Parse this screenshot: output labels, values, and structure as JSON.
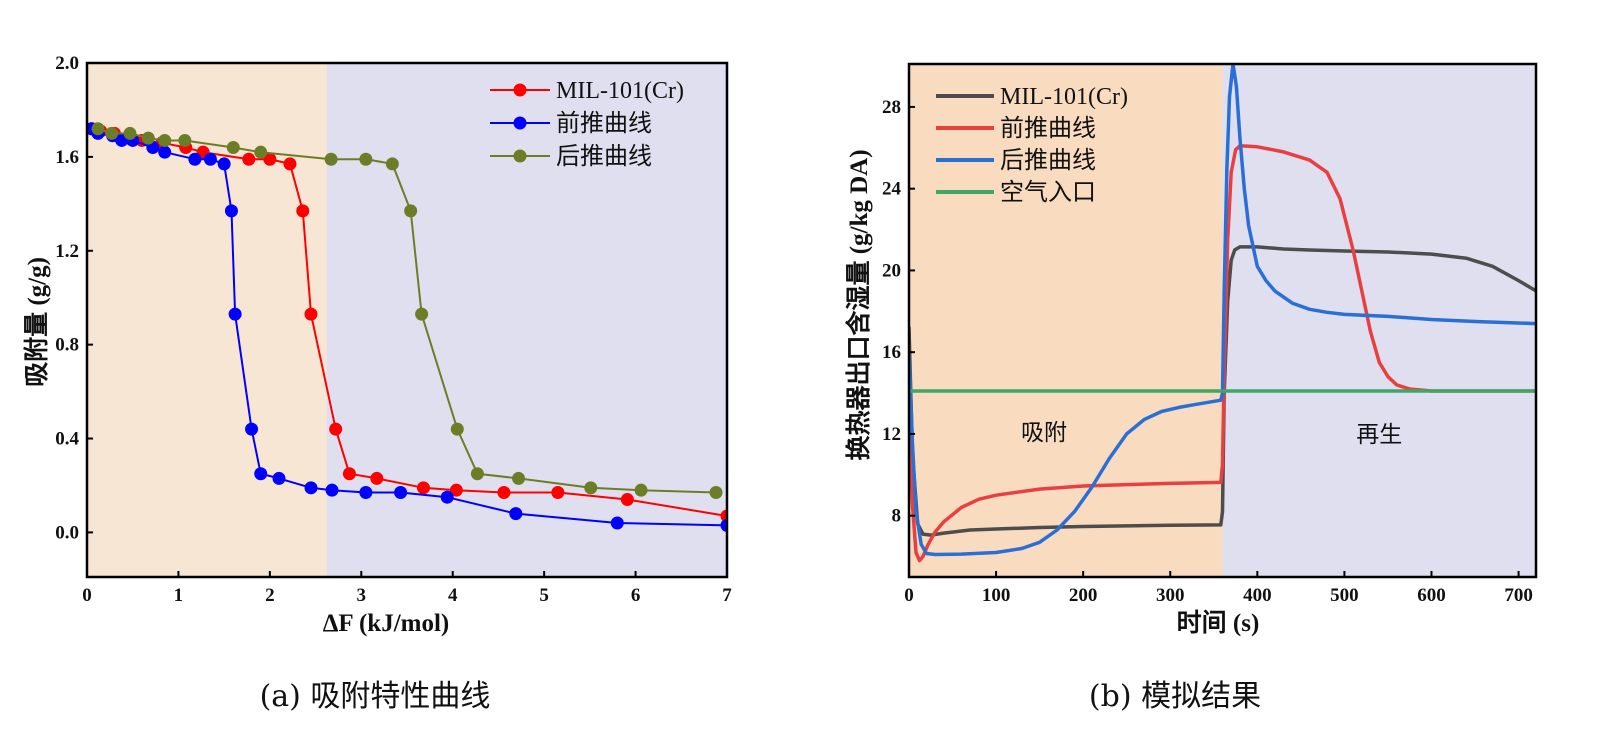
{
  "chart_data": [
    {
      "type": "line",
      "markers": true,
      "title": "",
      "xlabel": "ΔF (kJ/mol)",
      "ylabel": "吸附量 (g/g)",
      "xlim": [
        0,
        7
      ],
      "ylim": [
        -0.19,
        2.0
      ],
      "xticks": [
        0,
        1,
        2,
        3,
        4,
        5,
        6,
        7
      ],
      "yticks": [
        0.0,
        0.4,
        0.8,
        1.2,
        1.6,
        2.0
      ],
      "ytick_labels": [
        "0.0",
        "0.4",
        "0.8",
        "1.2",
        "1.6",
        "2.0"
      ],
      "grid": false,
      "legend_position": "top-right",
      "regions": [
        {
          "x_from": 0,
          "x_to": 2.62,
          "color": "#f8e6d4"
        },
        {
          "x_from": 2.62,
          "x_to": 7,
          "color": "#dfdfef"
        }
      ],
      "series": [
        {
          "name": "MIL-101(Cr)",
          "color": "#ff0000",
          "x": [
            0.05,
            0.15,
            0.3,
            0.45,
            0.6,
            0.82,
            1.08,
            1.27,
            1.77,
            2.0,
            2.22,
            2.36,
            2.45,
            2.72,
            2.87,
            3.17,
            3.68,
            4.04,
            4.56,
            5.15,
            5.91,
            7.0
          ],
          "y": [
            1.72,
            1.71,
            1.7,
            1.68,
            1.67,
            1.66,
            1.64,
            1.62,
            1.59,
            1.59,
            1.57,
            1.37,
            0.93,
            0.44,
            0.25,
            0.23,
            0.19,
            0.18,
            0.17,
            0.17,
            0.14,
            0.07
          ]
        },
        {
          "name": "前推曲线",
          "color": "#0000ff",
          "x": [
            0.05,
            0.12,
            0.28,
            0.38,
            0.5,
            0.72,
            0.85,
            1.18,
            1.35,
            1.5,
            1.58,
            1.62,
            1.8,
            1.9,
            2.1,
            2.45,
            2.68,
            3.05,
            3.43,
            3.94,
            4.69,
            5.8,
            7.0
          ],
          "y": [
            1.72,
            1.7,
            1.69,
            1.67,
            1.67,
            1.64,
            1.62,
            1.59,
            1.59,
            1.57,
            1.37,
            0.93,
            0.44,
            0.25,
            0.23,
            0.19,
            0.18,
            0.17,
            0.17,
            0.15,
            0.08,
            0.04,
            0.03
          ]
        },
        {
          "name": "后推曲线",
          "color": "#6b7e27",
          "x": [
            0.12,
            0.27,
            0.47,
            0.67,
            0.85,
            1.07,
            1.6,
            1.9,
            2.67,
            3.05,
            3.34,
            3.54,
            3.66,
            4.05,
            4.27,
            4.72,
            5.51,
            6.06,
            6.88
          ],
          "y": [
            1.72,
            1.7,
            1.7,
            1.68,
            1.67,
            1.67,
            1.64,
            1.62,
            1.59,
            1.59,
            1.57,
            1.37,
            0.93,
            0.44,
            0.25,
            0.23,
            0.19,
            0.18,
            0.17
          ]
        }
      ]
    },
    {
      "type": "line",
      "markers": false,
      "title": "",
      "xlabel": "时间 (s)",
      "ylabel": "换热器出口含湿量 (g/kg DA)",
      "xlim": [
        0,
        720
      ],
      "ylim": [
        5.0,
        30.1
      ],
      "xticks": [
        0,
        100,
        200,
        300,
        400,
        500,
        600,
        700
      ],
      "yticks": [
        8,
        12,
        16,
        20,
        24,
        28
      ],
      "grid": false,
      "legend_position": "top-left",
      "regions": [
        {
          "x_from": 0,
          "x_to": 360,
          "color": "#f9dcc0",
          "label": "吸附",
          "label_x": 155,
          "label_y": 11.7
        },
        {
          "x_from": 360,
          "x_to": 720,
          "color": "#dfdfef",
          "label": "再生",
          "label_x": 540,
          "label_y": 11.6
        }
      ],
      "series": [
        {
          "name": "MIL-101(Cr)",
          "color": "#4d4d4d",
          "x": [
            0,
            4,
            10,
            16,
            25,
            40,
            70,
            100,
            150,
            200,
            250,
            300,
            358,
            360,
            362,
            366,
            370,
            374,
            380,
            390,
            400,
            430,
            460,
            500,
            550,
            600,
            640,
            670,
            700,
            720
          ],
          "y": [
            17.2,
            11.0,
            7.6,
            7.1,
            7.05,
            7.15,
            7.3,
            7.35,
            7.42,
            7.47,
            7.5,
            7.53,
            7.55,
            8.2,
            14.0,
            18.5,
            20.5,
            21.0,
            21.15,
            21.15,
            21.15,
            21.05,
            21.0,
            20.95,
            20.9,
            20.8,
            20.6,
            20.2,
            19.5,
            19.0
          ]
        },
        {
          "name": "前推曲线",
          "color": "#e84040",
          "x": [
            0,
            4,
            8,
            12,
            16,
            22,
            30,
            40,
            60,
            80,
            100,
            150,
            200,
            250,
            300,
            358,
            360,
            362,
            366,
            370,
            375,
            380,
            400,
            430,
            460,
            480,
            495,
            510,
            520,
            530,
            540,
            550,
            560,
            575,
            600,
            650,
            720
          ],
          "y": [
            12.5,
            8.5,
            6.2,
            5.8,
            6.0,
            6.6,
            7.2,
            7.7,
            8.4,
            8.8,
            9.0,
            9.3,
            9.45,
            9.52,
            9.58,
            9.63,
            10.5,
            15.0,
            21.5,
            24.8,
            25.9,
            26.1,
            26.05,
            25.8,
            25.4,
            24.8,
            23.5,
            21.0,
            19.0,
            17.0,
            15.5,
            14.8,
            14.4,
            14.2,
            14.1,
            14.1,
            14.1
          ]
        },
        {
          "name": "后推曲线",
          "color": "#2a6fd6",
          "x": [
            0,
            4,
            8,
            14,
            20,
            30,
            60,
            100,
            130,
            150,
            170,
            190,
            210,
            230,
            250,
            270,
            290,
            310,
            330,
            358,
            360,
            362,
            365,
            368,
            372,
            376,
            380,
            385,
            390,
            400,
            410,
            420,
            440,
            460,
            480,
            500,
            550,
            600,
            650,
            720
          ],
          "y": [
            16.0,
            11.5,
            8.2,
            6.6,
            6.15,
            6.1,
            6.12,
            6.2,
            6.4,
            6.7,
            7.3,
            8.2,
            9.4,
            10.8,
            12.0,
            12.7,
            13.1,
            13.3,
            13.45,
            13.65,
            14.0,
            19.0,
            25.0,
            28.5,
            30.1,
            29.0,
            26.5,
            24.0,
            22.2,
            20.2,
            19.5,
            19.0,
            18.4,
            18.1,
            17.95,
            17.85,
            17.75,
            17.6,
            17.5,
            17.4
          ]
        },
        {
          "name": "空气入口",
          "color": "#3ea765",
          "x": [
            0,
            720
          ],
          "y": [
            14.1,
            14.1
          ]
        }
      ]
    }
  ],
  "captions": {
    "a": "(a) 吸附特性曲线",
    "b": "(b) 模拟结果"
  }
}
